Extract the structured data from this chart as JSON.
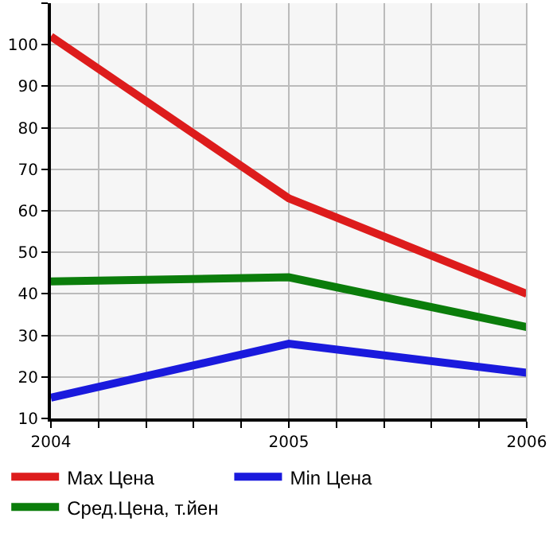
{
  "chart_data": {
    "type": "line",
    "x": [
      2004,
      2005,
      2006
    ],
    "series": [
      {
        "name": "Max Цена",
        "color": "#dd1c1c",
        "values": [
          102,
          63,
          40
        ]
      },
      {
        "name": "Min Цена",
        "color": "#1a1add",
        "values": [
          15,
          28,
          21
        ]
      },
      {
        "name": "Сред.Цена, т.йен",
        "color": "#0b7d0b",
        "values": [
          43,
          44,
          32
        ]
      }
    ],
    "xlim": [
      2004,
      2006
    ],
    "xticks": [
      2004,
      {
        "value": 2004.2,
        "label": null
      },
      {
        "value": 2004.4,
        "label": null
      },
      {
        "value": 2004.6,
        "label": null
      },
      {
        "value": 2004.8,
        "label": null
      },
      2005,
      {
        "value": 2005.2,
        "label": null
      },
      {
        "value": 2005.4,
        "label": null
      },
      {
        "value": 2005.6,
        "label": null
      },
      {
        "value": 2005.8,
        "label": null
      },
      2006
    ],
    "ylim": [
      10,
      110
    ],
    "yticks": [
      10,
      20,
      30,
      40,
      50,
      60,
      70,
      80,
      90,
      100,
      {
        "value": 110,
        "label": null
      }
    ],
    "grid": true,
    "legend": "bottom",
    "marker": "none",
    "line_style": "solid"
  }
}
